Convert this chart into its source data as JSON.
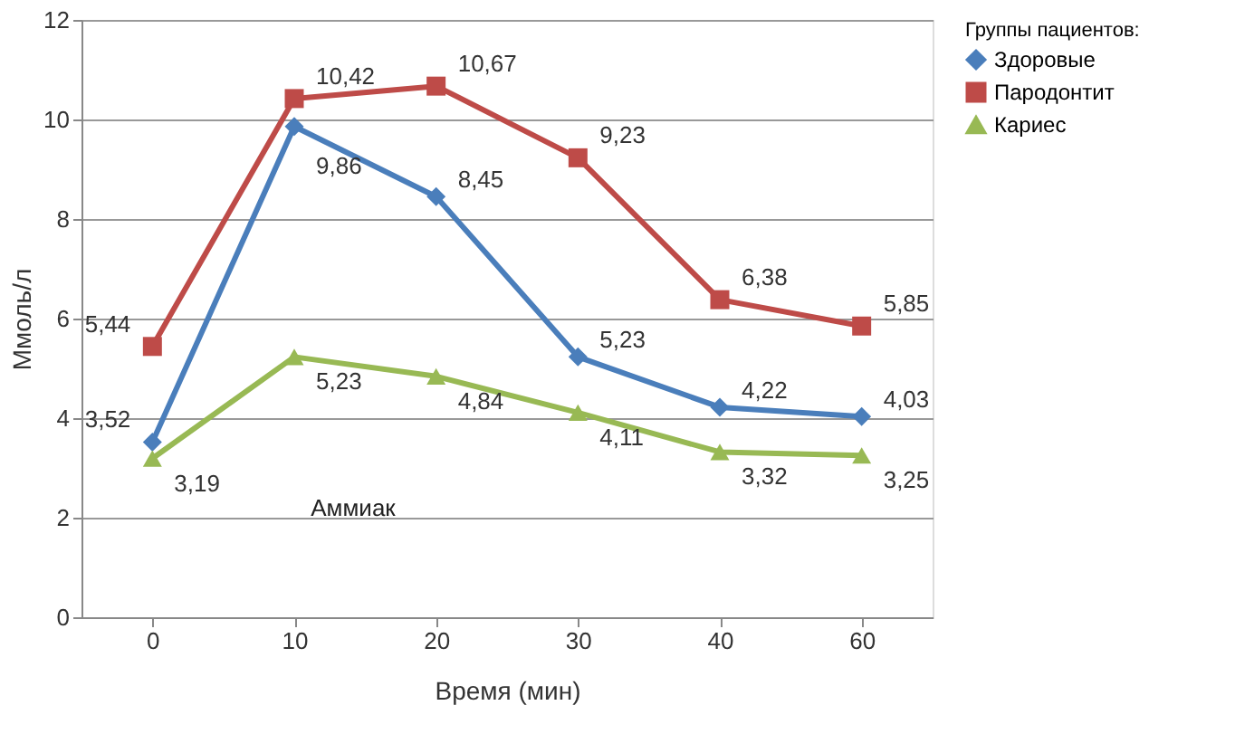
{
  "chart_data": {
    "type": "line",
    "xlabel": "Время (мин)",
    "ylabel": "Ммоль/л",
    "legend_title": "Группы пациентов:",
    "categories": [
      "0",
      "10",
      "20",
      "30",
      "40",
      "60"
    ],
    "series": [
      {
        "name": "Здоровые",
        "color": "#4a7ebb",
        "marker": "diamond",
        "values": [
          3.52,
          9.86,
          8.45,
          5.23,
          4.22,
          4.03
        ],
        "value_labels": [
          "3,52",
          "9,86",
          "8,45",
          "5,23",
          "4,22",
          "4,03"
        ]
      },
      {
        "name": "Пародонтит",
        "color": "#be4b48",
        "marker": "square",
        "values": [
          5.44,
          10.42,
          10.67,
          9.23,
          6.38,
          5.85
        ],
        "value_labels": [
          "5,44",
          "10,42",
          "10,67",
          "9,23",
          "6,38",
          "5,85"
        ]
      },
      {
        "name": "Кариес",
        "color": "#98b954",
        "marker": "triangle",
        "values": [
          3.19,
          5.23,
          4.84,
          4.11,
          3.32,
          3.25
        ],
        "value_labels": [
          "3,19",
          "5,23",
          "4,84",
          "4,11",
          "3,32",
          "3,25"
        ]
      }
    ],
    "annotations": [
      "Аммиак"
    ],
    "ylim": [
      0,
      12
    ],
    "yticks": [
      0,
      2,
      4,
      6,
      8,
      10,
      12
    ],
    "grid": "y",
    "legend": "right",
    "line_style": "solid"
  }
}
